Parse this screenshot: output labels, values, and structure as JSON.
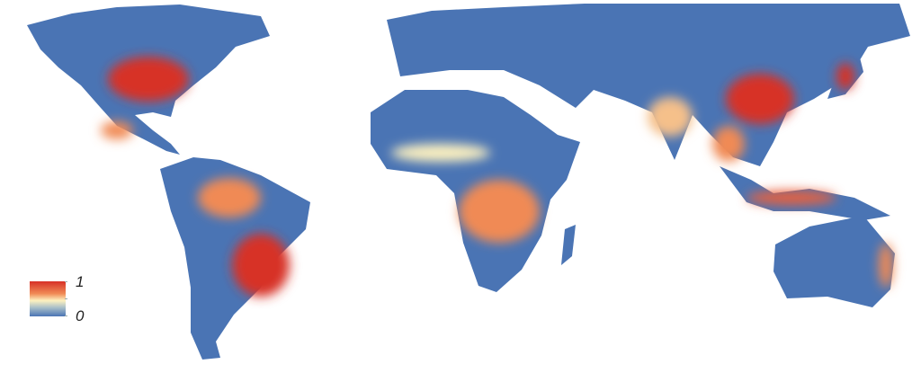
{
  "map": {
    "type": "choropleth world map",
    "colors": {
      "low": "#4a74b4",
      "mid": "#fdf1c0",
      "high": "#d73027",
      "background": "#ffffff"
    }
  },
  "legend": {
    "max_label": "1",
    "min_label": "0",
    "gradient": [
      "#d73027",
      "#f08a55",
      "#fdf1c0",
      "#a9bfc9",
      "#4a74b4"
    ]
  }
}
